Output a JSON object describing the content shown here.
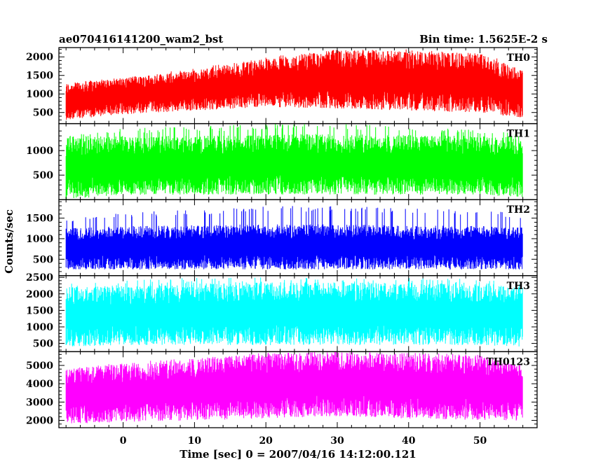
{
  "chart_data": {
    "type": "line",
    "title": "ae070416141200_wam2_bst",
    "subtitle": "Bin time: 1.5625E-2 s",
    "xlabel": "Time [sec] 0 = 2007/04/16 14:12:00.121",
    "ylabel": "Counts/sec",
    "xlim": [
      -9,
      58
    ],
    "x_data_range": [
      -8,
      56
    ],
    "x_ticks": [
      0,
      10,
      20,
      30,
      40,
      50
    ],
    "x_tick_labels": [
      "0",
      "10",
      "20",
      "30",
      "40",
      "50"
    ],
    "grid": false,
    "panels": [
      {
        "name": "TH0",
        "color": "#ff0000",
        "ylim": [
          200,
          2250
        ],
        "y_ticks": [
          500,
          1000,
          1500,
          2000
        ],
        "y_tick_labels": [
          "500",
          "1000",
          "1500",
          "2000"
        ],
        "envelope_x": [
          -8,
          0,
          10,
          20,
          30,
          40,
          50,
          56
        ],
        "envelope_low": [
          300,
          450,
          550,
          650,
          600,
          550,
          500,
          350
        ],
        "envelope_high": [
          1300,
          1450,
          1700,
          2000,
          2200,
          2200,
          2150,
          1700
        ],
        "envelope_mean": [
          800,
          950,
          1100,
          1300,
          1400,
          1350,
          1300,
          1000
        ]
      },
      {
        "name": "TH1",
        "color": "#00ff00",
        "ylim": [
          0,
          1550
        ],
        "y_ticks": [
          500,
          1000
        ],
        "y_tick_labels": [
          "500",
          "1000"
        ],
        "envelope_x": [
          -8,
          0,
          10,
          20,
          30,
          40,
          50,
          56
        ],
        "envelope_low": [
          0,
          100,
          100,
          100,
          100,
          100,
          100,
          50
        ],
        "envelope_high": [
          1300,
          1450,
          1500,
          1550,
          1550,
          1500,
          1450,
          1350
        ],
        "envelope_mean": [
          650,
          700,
          700,
          720,
          720,
          710,
          700,
          660
        ]
      },
      {
        "name": "TH2",
        "color": "#0000ff",
        "ylim": [
          100,
          1950
        ],
        "y_ticks": [
          500,
          1000,
          1500
        ],
        "y_tick_labels": [
          "500",
          "1000",
          "1500"
        ],
        "envelope_x": [
          -8,
          0,
          10,
          20,
          30,
          40,
          50,
          56
        ],
        "envelope_low": [
          250,
          250,
          250,
          250,
          250,
          250,
          250,
          250
        ],
        "envelope_high": [
          1500,
          1650,
          1700,
          1800,
          1800,
          1750,
          1700,
          1600
        ],
        "envelope_mean": [
          750,
          780,
          790,
          800,
          800,
          790,
          780,
          760
        ]
      },
      {
        "name": "TH3",
        "color": "#00ffff",
        "ylim": [
          250,
          2550
        ],
        "y_ticks": [
          500,
          1000,
          1500,
          2000,
          2500
        ],
        "y_tick_labels": [
          "500",
          "1000",
          "1500",
          "2000",
          "2500"
        ],
        "envelope_x": [
          -8,
          0,
          10,
          20,
          30,
          40,
          50,
          56
        ],
        "envelope_low": [
          400,
          450,
          450,
          450,
          450,
          450,
          450,
          400
        ],
        "envelope_high": [
          2300,
          2400,
          2500,
          2500,
          2500,
          2500,
          2450,
          2300
        ],
        "envelope_mean": [
          1300,
          1350,
          1380,
          1400,
          1400,
          1390,
          1370,
          1300
        ]
      },
      {
        "name": "TH0123",
        "color": "#ff00ff",
        "ylim": [
          1600,
          5750
        ],
        "y_ticks": [
          2000,
          3000,
          4000,
          5000
        ],
        "y_tick_labels": [
          "2000",
          "3000",
          "4000",
          "5000"
        ],
        "envelope_x": [
          -8,
          0,
          10,
          20,
          30,
          40,
          50,
          56
        ],
        "envelope_low": [
          1800,
          1900,
          2000,
          2100,
          2200,
          2100,
          2000,
          1900
        ],
        "envelope_high": [
          4800,
          5200,
          5400,
          5700,
          5750,
          5700,
          5600,
          5000
        ],
        "envelope_mean": [
          3300,
          3500,
          3700,
          3900,
          4000,
          3900,
          3800,
          3500
        ]
      }
    ]
  }
}
